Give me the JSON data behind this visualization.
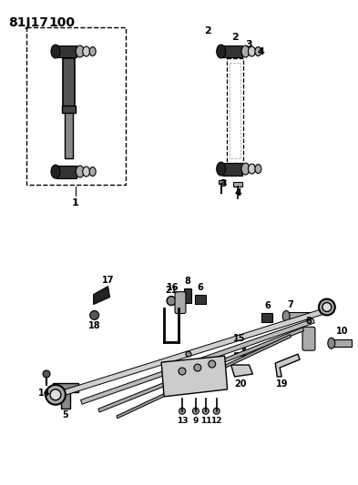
{
  "title1": "81J17",
  "title2": "100",
  "bg_color": "#ffffff",
  "lc": "#000000"
}
